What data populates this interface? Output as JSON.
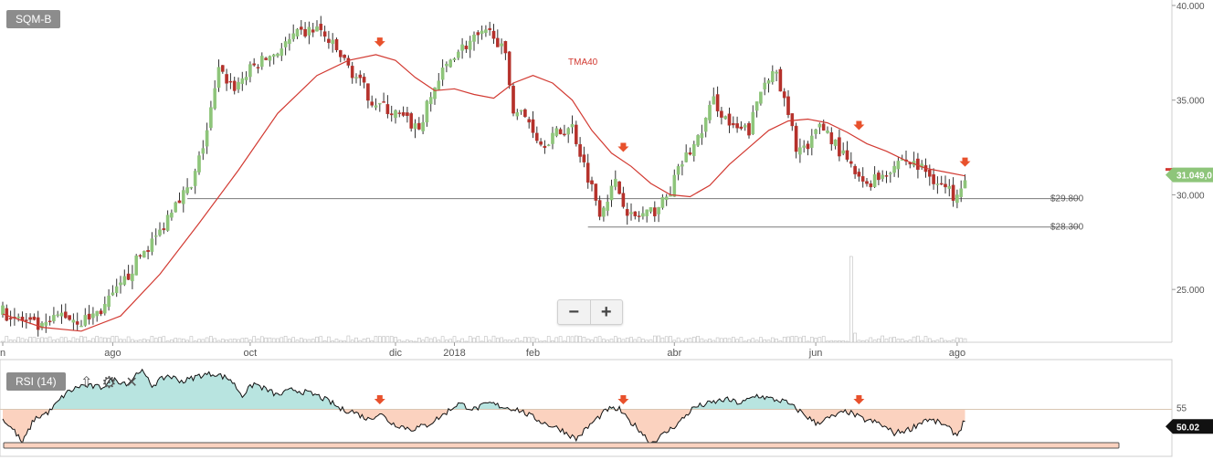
{
  "symbol": "SQM-B",
  "rsi_tag": "RSI (14)",
  "zoom": {
    "minus": "−",
    "plus": "+"
  },
  "icons": {
    "up": "up-arrow-icon",
    "settings": "gear-icon",
    "close": "close-icon"
  },
  "chart_data": [
    {
      "type": "candlestick",
      "ylim": [
        22.5,
        40.0
      ],
      "yticks": [
        {
          "value": 40,
          "label": "40.000"
        },
        {
          "value": 35,
          "label": "35.000"
        },
        {
          "value": 30,
          "label": "30.000"
        },
        {
          "value": 25,
          "label": "25.000"
        }
      ],
      "xticks": [
        {
          "day": 0,
          "label": "n"
        },
        {
          "day": 28,
          "label": "ago"
        },
        {
          "day": 63,
          "label": "oct"
        },
        {
          "day": 100,
          "label": "dic"
        },
        {
          "day": 115,
          "label": "2018"
        },
        {
          "day": 135,
          "label": "feb"
        },
        {
          "day": 171,
          "label": "abr"
        },
        {
          "day": 207,
          "label": "jun"
        },
        {
          "day": 243,
          "label": "ago"
        }
      ],
      "ohlc_anchors": [
        [
          0,
          23.8
        ],
        [
          10,
          22.9
        ],
        [
          15,
          23.7
        ],
        [
          20,
          23.3
        ],
        [
          25,
          23.9
        ],
        [
          30,
          25.1
        ],
        [
          35,
          26.8
        ],
        [
          40,
          28.0
        ],
        [
          44,
          29.8
        ],
        [
          48,
          30.3
        ],
        [
          52,
          33.4
        ],
        [
          55,
          36.5
        ],
        [
          59,
          35.7
        ],
        [
          64,
          36.8
        ],
        [
          70,
          37.6
        ],
        [
          75,
          38.4
        ],
        [
          80,
          38.8
        ],
        [
          85,
          37.6
        ],
        [
          90,
          36.2
        ],
        [
          94,
          35.0
        ],
        [
          98,
          34.5
        ],
        [
          102,
          34.0
        ],
        [
          106,
          33.5
        ],
        [
          110,
          35.7
        ],
        [
          115,
          37.5
        ],
        [
          120,
          38.2
        ],
        [
          125,
          38.6
        ],
        [
          128,
          37.2
        ],
        [
          130,
          34.6
        ],
        [
          134,
          33.9
        ],
        [
          137,
          32.7
        ],
        [
          140,
          33.1
        ],
        [
          145,
          33.6
        ],
        [
          148,
          31.6
        ],
        [
          152,
          29.2
        ],
        [
          156,
          30.6
        ],
        [
          160,
          28.8
        ],
        [
          165,
          29.0
        ],
        [
          169,
          29.8
        ],
        [
          173,
          31.7
        ],
        [
          177,
          32.9
        ],
        [
          181,
          35.0
        ],
        [
          186,
          33.4
        ],
        [
          190,
          33.4
        ],
        [
          193,
          35.5
        ],
        [
          196,
          36.8
        ],
        [
          199,
          34.9
        ],
        [
          202,
          32.6
        ],
        [
          205,
          32.3
        ],
        [
          208,
          33.8
        ],
        [
          211,
          33.0
        ],
        [
          215,
          31.7
        ],
        [
          219,
          30.5
        ],
        [
          224,
          31.1
        ],
        [
          229,
          31.9
        ],
        [
          234,
          31.4
        ],
        [
          238,
          30.7
        ],
        [
          242,
          30.0
        ],
        [
          245,
          31.0
        ]
      ],
      "tma40": [
        [
          0,
          23.7
        ],
        [
          10,
          23.0
        ],
        [
          20,
          22.8
        ],
        [
          30,
          23.6
        ],
        [
          40,
          25.8
        ],
        [
          50,
          28.5
        ],
        [
          60,
          31.3
        ],
        [
          70,
          34.3
        ],
        [
          80,
          36.3
        ],
        [
          88,
          37.1
        ],
        [
          95,
          37.4
        ],
        [
          100,
          37.1
        ],
        [
          105,
          36.2
        ],
        [
          110,
          35.5
        ],
        [
          115,
          35.6
        ],
        [
          120,
          35.3
        ],
        [
          125,
          35.1
        ],
        [
          130,
          35.9
        ],
        [
          135,
          36.3
        ],
        [
          140,
          35.9
        ],
        [
          145,
          35.0
        ],
        [
          150,
          33.4
        ],
        [
          155,
          32.2
        ],
        [
          160,
          31.5
        ],
        [
          165,
          30.6
        ],
        [
          170,
          30.0
        ],
        [
          175,
          29.9
        ],
        [
          180,
          30.5
        ],
        [
          185,
          31.6
        ],
        [
          190,
          32.5
        ],
        [
          195,
          33.4
        ],
        [
          200,
          33.9
        ],
        [
          205,
          34.0
        ],
        [
          210,
          33.8
        ],
        [
          215,
          33.3
        ],
        [
          220,
          32.7
        ],
        [
          225,
          32.3
        ],
        [
          230,
          31.8
        ],
        [
          235,
          31.4
        ],
        [
          240,
          31.2
        ],
        [
          245,
          31.0
        ]
      ],
      "tma_label": "TMA40",
      "support_lines": [
        {
          "value": 29.8,
          "label": "$29.800",
          "from_day": 47,
          "to_day": 274
        },
        {
          "value": 28.3,
          "label": "$28.300",
          "from_day": 149,
          "to_day": 274
        }
      ],
      "last_price": {
        "value": 31.049,
        "label": "31.049,0"
      },
      "signal_days": [
        96,
        158,
        218,
        245
      ],
      "volume_spike_day": 216
    },
    {
      "type": "line",
      "series": [
        {
          "name": "RSI (14)"
        }
      ],
      "threshold": {
        "value": 55,
        "label": "55"
      },
      "last_value": {
        "value": 50.02,
        "label": "50.02"
      },
      "ylim": [
        35,
        80
      ],
      "rsi_anchors": [
        [
          0,
          50
        ],
        [
          3,
          44
        ],
        [
          5,
          38
        ],
        [
          8,
          50
        ],
        [
          12,
          54
        ],
        [
          16,
          63
        ],
        [
          20,
          67
        ],
        [
          25,
          66
        ],
        [
          28,
          70
        ],
        [
          32,
          68
        ],
        [
          35,
          75
        ],
        [
          38,
          67
        ],
        [
          42,
          72
        ],
        [
          46,
          69
        ],
        [
          50,
          72
        ],
        [
          54,
          73
        ],
        [
          58,
          70
        ],
        [
          61,
          62
        ],
        [
          64,
          68
        ],
        [
          70,
          62
        ],
        [
          74,
          65
        ],
        [
          80,
          62
        ],
        [
          84,
          58
        ],
        [
          86,
          55
        ],
        [
          89,
          54
        ],
        [
          93,
          50
        ],
        [
          96,
          53
        ],
        [
          99,
          48
        ],
        [
          104,
          45
        ],
        [
          108,
          47
        ],
        [
          112,
          52
        ],
        [
          116,
          58
        ],
        [
          120,
          55
        ],
        [
          124,
          58
        ],
        [
          128,
          56
        ],
        [
          131,
          55
        ],
        [
          134,
          52
        ],
        [
          138,
          48
        ],
        [
          142,
          45
        ],
        [
          146,
          40
        ],
        [
          150,
          48
        ],
        [
          154,
          55
        ],
        [
          157,
          55
        ],
        [
          159,
          50
        ],
        [
          162,
          45
        ],
        [
          165,
          38
        ],
        [
          168,
          42
        ],
        [
          172,
          48
        ],
        [
          176,
          56
        ],
        [
          180,
          58
        ],
        [
          184,
          60
        ],
        [
          188,
          58
        ],
        [
          192,
          62
        ],
        [
          196,
          60
        ],
        [
          199,
          59
        ],
        [
          203,
          54
        ],
        [
          207,
          48
        ],
        [
          211,
          51
        ],
        [
          215,
          54
        ],
        [
          219,
          50
        ],
        [
          223,
          48
        ],
        [
          227,
          43
        ],
        [
          231,
          45
        ],
        [
          235,
          50
        ],
        [
          239,
          48
        ],
        [
          243,
          42
        ],
        [
          245,
          50
        ]
      ],
      "rsi_signal_days": [
        96,
        158,
        218
      ]
    }
  ]
}
